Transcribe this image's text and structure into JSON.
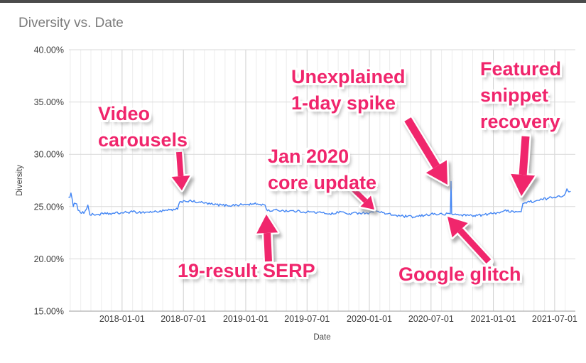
{
  "window": {
    "top_bar_color": "#4b4b4b"
  },
  "chart": {
    "title": "Diversity vs. Date",
    "xlabel": "Date",
    "ylabel": "Diversity"
  },
  "colors": {
    "line": "#4285f4",
    "annotation": "#f0256c",
    "title_text": "#7b7b7b",
    "tick_text": "#3c3c3c",
    "grid_major": "#cfcfcf",
    "grid_minor": "#ececec",
    "axis_line": "#9e9e9e"
  },
  "annotations": [
    {
      "id": "video-carousels",
      "text": "Video\ncarousels",
      "target_date": "2018-06-20",
      "target_value": 25.45
    },
    {
      "id": "19-result-serp",
      "text": "19-result SERP",
      "target_date": "2019-03-06",
      "target_value": 24.6
    },
    {
      "id": "jan-2020-core-update",
      "text": "Jan 2020\ncore update",
      "target_date": "2020-01-16",
      "target_value": 24.8
    },
    {
      "id": "unexplained-1-day-spike",
      "text": "Unexplained\n1-day spike",
      "target_date": "2020-08-29",
      "target_value": 27.4
    },
    {
      "id": "google-glitch",
      "text": "Google glitch",
      "target_date": "2020-08-27",
      "target_value": 24.3
    },
    {
      "id": "featured-snippet-recovery",
      "text": "Featured\nsnippet\nrecovery",
      "target_date": "2021-03-29",
      "target_value": 25.3
    }
  ],
  "chart_data": {
    "type": "line",
    "title": "Diversity vs. Date",
    "xlabel": "Date",
    "ylabel": "Diversity",
    "legend": "none",
    "grid": "on",
    "x_domain": [
      "2017-07-28",
      "2021-08-31"
    ],
    "ylim": [
      15,
      40
    ],
    "y_ticks": [
      {
        "value": 40,
        "label": "40.00%"
      },
      {
        "value": 35,
        "label": "35.00%"
      },
      {
        "value": 30,
        "label": "30.00%"
      },
      {
        "value": 25,
        "label": "25.00%"
      },
      {
        "value": 20,
        "label": "20.00%"
      },
      {
        "value": 15,
        "label": "15.00%"
      }
    ],
    "x_ticks": [
      "2018-01-01",
      "2018-07-01",
      "2019-01-01",
      "2019-07-01",
      "2020-01-01",
      "2020-07-01",
      "2021-01-01",
      "2021-07-01"
    ],
    "series": [
      {
        "name": "Diversity",
        "points": [
          {
            "d": "2017-07-28",
            "v": 25.9,
            "n": 0.25
          },
          {
            "d": "2017-08-03",
            "v": 26.3,
            "n": 0.25
          },
          {
            "d": "2017-08-10",
            "v": 25.0,
            "n": 0.22
          },
          {
            "d": "2017-08-16",
            "v": 25.3,
            "n": 0.2
          },
          {
            "d": "2017-08-28",
            "v": 24.6,
            "n": 0.18
          },
          {
            "d": "2017-09-10",
            "v": 24.35,
            "n": 0.15
          },
          {
            "d": "2017-09-22",
            "v": 25.15,
            "n": 0.15
          },
          {
            "d": "2017-09-28",
            "v": 24.2,
            "n": 0.13
          },
          {
            "d": "2017-10-20",
            "v": 24.25,
            "n": 0.13
          },
          {
            "d": "2017-11-15",
            "v": 24.3,
            "n": 0.13
          },
          {
            "d": "2017-12-10",
            "v": 24.35,
            "n": 0.13
          },
          {
            "d": "2018-01-01",
            "v": 24.4,
            "n": 0.12
          },
          {
            "d": "2018-02-01",
            "v": 24.5,
            "n": 0.12
          },
          {
            "d": "2018-03-01",
            "v": 24.45,
            "n": 0.12
          },
          {
            "d": "2018-04-05",
            "v": 24.5,
            "n": 0.12
          },
          {
            "d": "2018-05-05",
            "v": 24.6,
            "n": 0.12
          },
          {
            "d": "2018-06-05",
            "v": 24.7,
            "n": 0.12
          },
          {
            "d": "2018-06-14",
            "v": 24.75,
            "n": 0.1
          },
          {
            "d": "2018-06-20",
            "v": 25.45,
            "n": 0.12
          },
          {
            "d": "2018-07-05",
            "v": 25.55,
            "n": 0.12
          },
          {
            "d": "2018-07-25",
            "v": 25.5,
            "n": 0.12
          },
          {
            "d": "2018-08-20",
            "v": 25.4,
            "n": 0.12
          },
          {
            "d": "2018-09-26",
            "v": 25.2,
            "n": 0.12
          },
          {
            "d": "2018-11-07",
            "v": 25.1,
            "n": 0.12
          },
          {
            "d": "2019-01-01",
            "v": 25.2,
            "n": 0.12
          },
          {
            "d": "2019-02-05",
            "v": 25.25,
            "n": 0.12
          },
          {
            "d": "2019-02-27",
            "v": 25.15,
            "n": 0.1
          },
          {
            "d": "2019-03-06",
            "v": 24.6,
            "n": 0.12
          },
          {
            "d": "2019-04-05",
            "v": 24.65,
            "n": 0.12
          },
          {
            "d": "2019-06-01",
            "v": 24.55,
            "n": 0.12
          },
          {
            "d": "2019-07-01",
            "v": 24.5,
            "n": 0.12
          },
          {
            "d": "2019-08-15",
            "v": 24.4,
            "n": 0.12
          },
          {
            "d": "2019-09-20",
            "v": 24.3,
            "n": 0.12
          },
          {
            "d": "2019-10-06",
            "v": 24.55,
            "n": 0.12
          },
          {
            "d": "2019-10-27",
            "v": 24.3,
            "n": 0.12
          },
          {
            "d": "2019-12-01",
            "v": 24.4,
            "n": 0.12
          },
          {
            "d": "2020-01-01",
            "v": 24.4,
            "n": 0.1
          },
          {
            "d": "2020-01-12",
            "v": 24.45,
            "n": 0.1
          },
          {
            "d": "2020-01-16",
            "v": 24.8,
            "n": 0.1
          },
          {
            "d": "2020-01-26",
            "v": 24.55,
            "n": 0.12
          },
          {
            "d": "2020-02-20",
            "v": 24.3,
            "n": 0.12
          },
          {
            "d": "2020-03-31",
            "v": 24.1,
            "n": 0.12
          },
          {
            "d": "2020-05-11",
            "v": 24.0,
            "n": 0.12
          },
          {
            "d": "2020-06-11",
            "v": 24.15,
            "n": 0.14
          },
          {
            "d": "2020-07-01",
            "v": 24.3,
            "n": 0.14
          },
          {
            "d": "2020-08-04",
            "v": 24.25,
            "n": 0.12
          },
          {
            "d": "2020-08-27",
            "v": 24.3,
            "n": 0.05
          },
          {
            "d": "2020-08-29",
            "v": 27.4,
            "n": 0.05
          },
          {
            "d": "2020-08-31",
            "v": 24.3,
            "n": 0.12
          },
          {
            "d": "2020-09-25",
            "v": 24.2,
            "n": 0.12
          },
          {
            "d": "2020-11-05",
            "v": 24.15,
            "n": 0.12
          },
          {
            "d": "2020-12-02",
            "v": 24.2,
            "n": 0.12
          },
          {
            "d": "2021-01-01",
            "v": 24.35,
            "n": 0.12
          },
          {
            "d": "2021-01-30",
            "v": 24.55,
            "n": 0.14
          },
          {
            "d": "2021-02-24",
            "v": 24.6,
            "n": 0.14
          },
          {
            "d": "2021-03-12",
            "v": 24.5,
            "n": 0.12
          },
          {
            "d": "2021-03-24",
            "v": 24.5,
            "n": 0.08
          },
          {
            "d": "2021-03-29",
            "v": 25.3,
            "n": 0.12
          },
          {
            "d": "2021-04-18",
            "v": 25.45,
            "n": 0.14
          },
          {
            "d": "2021-05-17",
            "v": 25.6,
            "n": 0.14
          },
          {
            "d": "2021-06-13",
            "v": 25.8,
            "n": 0.12
          },
          {
            "d": "2021-07-10",
            "v": 26.0,
            "n": 0.12
          },
          {
            "d": "2021-07-25",
            "v": 26.0,
            "n": 0.1
          },
          {
            "d": "2021-08-02",
            "v": 26.3,
            "n": 0.08
          },
          {
            "d": "2021-08-06",
            "v": 26.7,
            "n": 0.05
          },
          {
            "d": "2021-08-12",
            "v": 26.4,
            "n": 0.05
          },
          {
            "d": "2021-08-16",
            "v": 26.45,
            "n": 0
          }
        ]
      }
    ]
  }
}
